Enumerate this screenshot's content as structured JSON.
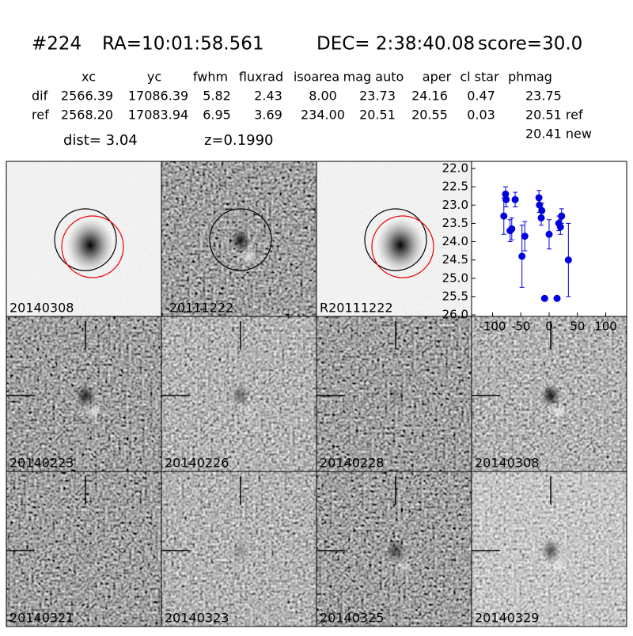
{
  "header": {
    "id": "#224",
    "ra": "RA=10:01:58.561",
    "dec": "DEC= 2:38:40.08",
    "score": "score=30.0"
  },
  "table": {
    "columns": [
      "xc",
      "yc",
      "fwhm",
      "fluxrad",
      "isoarea",
      "mag auto",
      "aper",
      "cl star",
      "phmag"
    ],
    "rows": [
      {
        "label": "dif",
        "values": [
          "2566.39",
          "17086.39",
          "5.82",
          "2.43",
          "8.00",
          "23.73",
          "24.16",
          "0.47",
          "23.75"
        ]
      },
      {
        "label": "ref",
        "values": [
          "2568.20",
          "17083.94",
          "6.95",
          "3.69",
          "234.00",
          "20.51",
          "20.55",
          "0.03",
          "20.51 ref"
        ]
      }
    ],
    "extra": "20.41 new"
  },
  "info": {
    "dist": "dist=  3.04",
    "z": "z=0.1990"
  },
  "panels": [
    "20140308",
    "-20111222",
    "R20111222",
    "20140223",
    "20140226",
    "20140228",
    "20140308",
    "20140321",
    "20140323",
    "20140325",
    "20140329"
  ],
  "chart_data": {
    "type": "scatter",
    "color": "#0000dd",
    "x": [
      -80,
      -77,
      -76,
      -69,
      -66,
      -60,
      -48,
      -43,
      -18,
      -17,
      -14,
      -13,
      0,
      -8,
      14,
      17,
      20,
      22,
      34
    ],
    "values": [
      23.3,
      22.7,
      22.85,
      23.7,
      23.65,
      22.85,
      24.4,
      23.85,
      22.8,
      23.0,
      23.35,
      23.15,
      23.8,
      25.55,
      25.55,
      23.5,
      23.6,
      23.3,
      24.5
    ],
    "errors": [
      0.5,
      0.2,
      0.2,
      0.3,
      0.3,
      0.2,
      0.85,
      0.4,
      0.2,
      0.2,
      0.2,
      0.2,
      0.4,
      0.05,
      0.05,
      0.2,
      0.2,
      0.2,
      1.0
    ],
    "xlim": [
      -137,
      137
    ],
    "xticks": [
      -100,
      -50,
      0,
      50,
      100
    ],
    "ylim": [
      26.0,
      22.0
    ],
    "y_inverted": true,
    "yticks": [
      {
        "value": 22,
        "label": "22.0"
      },
      {
        "value": 22.5,
        "label": "22.5"
      },
      {
        "value": 23,
        "label": "23.0"
      },
      {
        "value": 23.5,
        "label": "23.5"
      },
      {
        "value": 24,
        "label": "24.0"
      },
      {
        "value": 24.5,
        "label": "24.5"
      },
      {
        "value": 25,
        "label": "25.0"
      },
      {
        "value": 25.5,
        "label": "25.5"
      },
      {
        "value": 26,
        "label": "26.0"
      }
    ]
  }
}
